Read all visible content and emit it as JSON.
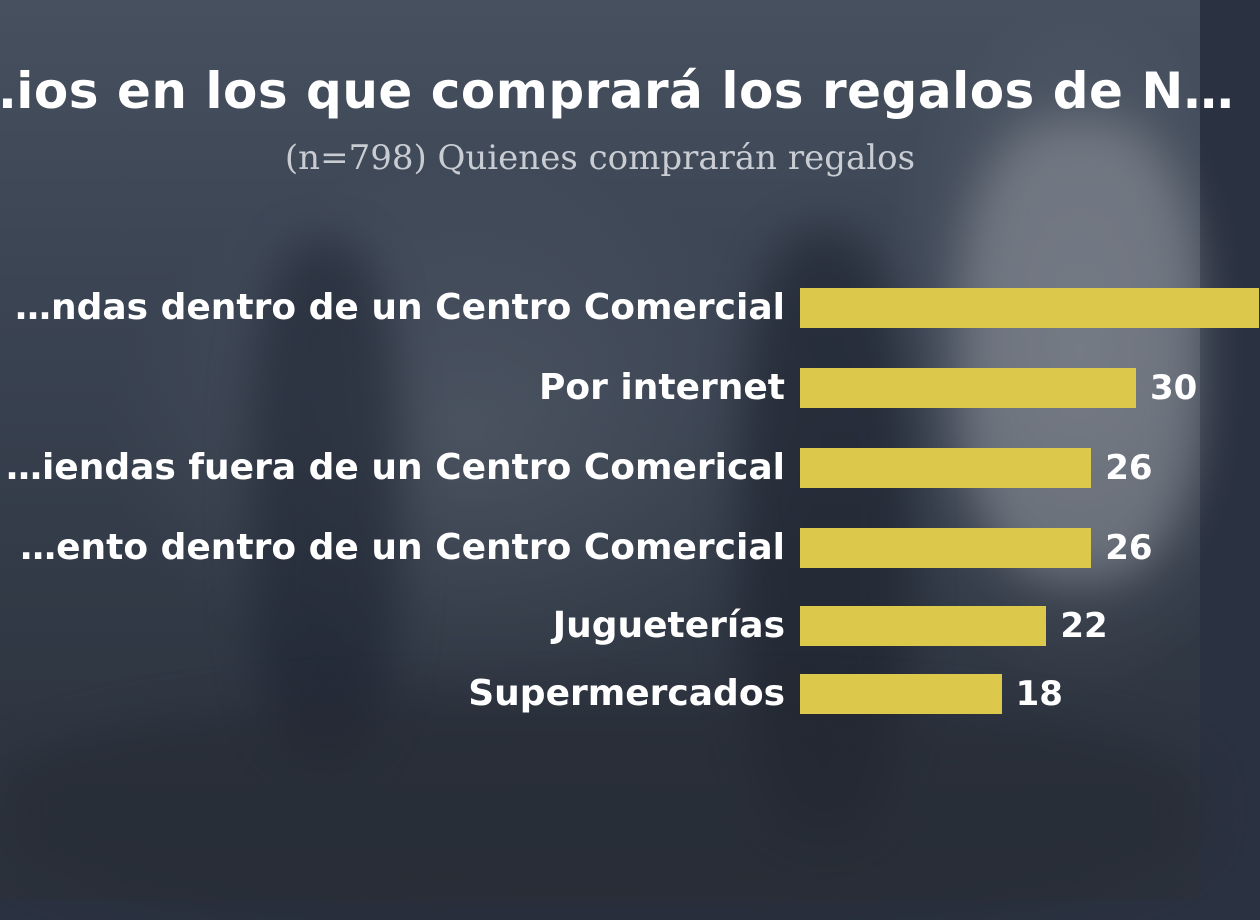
{
  "chart_data": {
    "type": "bar",
    "orientation": "horizontal",
    "title": "…ios en los que comprará los regalos de N…",
    "subtitle": "(n=798) Quienes comprarán regalos",
    "categories": [
      "…ndas dentro de un Centro Comercial",
      "Por internet",
      "…iendas fuera de un Centro Comerical",
      "…ento dentro de un Centro Comercial",
      "Jugueterías",
      "Supermercados"
    ],
    "values": [
      41,
      30,
      26,
      26,
      22,
      18
    ],
    "value_labels": [
      "",
      "30",
      "26",
      "26",
      "22",
      "18"
    ],
    "bar_color": "#dcc84a",
    "xlim": [
      0,
      41
    ]
  }
}
